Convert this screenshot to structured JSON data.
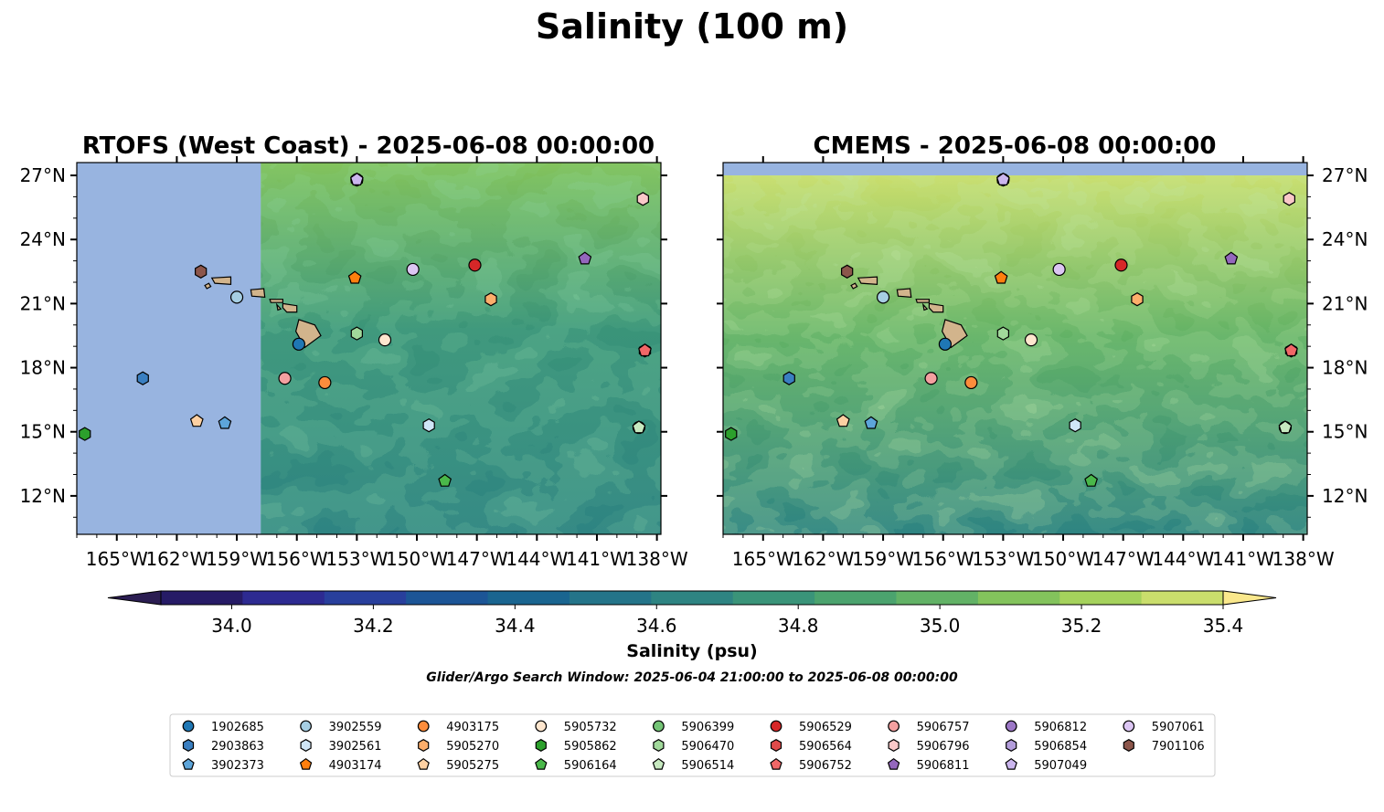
{
  "figure": {
    "suptitle": "Salinity (100 m)",
    "search_window": "Glider/Argo Search Window: 2025-06-04 21:00:00 to 2025-06-08 00:00:00"
  },
  "colors": {
    "land": "#d2b48c",
    "nodata": "#98b4e0",
    "frame": "#000000"
  },
  "colorbar": {
    "label": "Salinity (psu)",
    "min": 33.9,
    "max": 35.4,
    "step": 0.1,
    "extend": "both",
    "ticks": [
      {
        "value": 34.0,
        "label": "34.0"
      },
      {
        "value": 34.2,
        "label": "34.2"
      },
      {
        "value": 34.4,
        "label": "34.4"
      },
      {
        "value": 34.6,
        "label": "34.6"
      },
      {
        "value": 34.8,
        "label": "34.8"
      },
      {
        "value": 35.0,
        "label": "35.0"
      },
      {
        "value": 35.2,
        "label": "35.2"
      },
      {
        "value": 35.4,
        "label": "35.4"
      }
    ],
    "colors": [
      "#261b66",
      "#2d2a91",
      "#283f9c",
      "#1c5596",
      "#1a6590",
      "#247489",
      "#2e8482",
      "#3a9479",
      "#4ba36e",
      "#62b266",
      "#83c35c",
      "#a5d25c",
      "#cade6c"
    ],
    "under_color": "#2b1d52",
    "over_color": "#fae88c"
  },
  "chart_data": [
    {
      "type": "map",
      "title": "RTOFS (West Coast) - 2025-06-08 00:00:00",
      "xlim": [
        -167,
        -137.8
      ],
      "ylim": [
        10.2,
        27.6
      ],
      "xticks": [
        {
          "value": -165,
          "label": "165°W"
        },
        {
          "value": -162,
          "label": "162°W"
        },
        {
          "value": -159,
          "label": "159°W"
        },
        {
          "value": -156,
          "label": "156°W"
        },
        {
          "value": -153,
          "label": "153°W"
        },
        {
          "value": -150,
          "label": "150°W"
        },
        {
          "value": -147,
          "label": "147°W"
        },
        {
          "value": -144,
          "label": "144°W"
        },
        {
          "value": -141,
          "label": "141°W"
        },
        {
          "value": -138,
          "label": "138°W"
        }
      ],
      "yticks": [
        {
          "value": 27,
          "label": "27°N"
        },
        {
          "value": 24,
          "label": "24°N"
        },
        {
          "value": 21,
          "label": "21°N"
        },
        {
          "value": 18,
          "label": "18°N"
        },
        {
          "value": 15,
          "label": "15°N"
        },
        {
          "value": 12,
          "label": "12°N"
        }
      ],
      "ytick_side": "left",
      "data_extent": {
        "lon": [
          -157.8,
          -137.8
        ],
        "lat": [
          10.2,
          27.6
        ]
      },
      "salinity_field": {
        "mean": 34.6,
        "north_mean": 34.95,
        "south_mean": 34.5
      }
    },
    {
      "type": "map",
      "title": "CMEMS - 2025-06-08 00:00:00",
      "xlim": [
        -167,
        -137.8
      ],
      "ylim": [
        10.2,
        27.6
      ],
      "xticks": [
        {
          "value": -165,
          "label": "165°W"
        },
        {
          "value": -162,
          "label": "162°W"
        },
        {
          "value": -159,
          "label": "159°W"
        },
        {
          "value": -156,
          "label": "156°W"
        },
        {
          "value": -153,
          "label": "153°W"
        },
        {
          "value": -150,
          "label": "150°W"
        },
        {
          "value": -147,
          "label": "147°W"
        },
        {
          "value": -144,
          "label": "144°W"
        },
        {
          "value": -141,
          "label": "141°W"
        },
        {
          "value": -138,
          "label": "138°W"
        }
      ],
      "yticks": [
        {
          "value": 27,
          "label": "27°N"
        },
        {
          "value": 24,
          "label": "24°N"
        },
        {
          "value": 21,
          "label": "21°N"
        },
        {
          "value": 18,
          "label": "18°N"
        },
        {
          "value": 15,
          "label": "15°N"
        },
        {
          "value": 12,
          "label": "12°N"
        }
      ],
      "ytick_side": "right",
      "data_extent": {
        "lon": [
          -167,
          -137.8
        ],
        "lat": [
          10.2,
          27.0
        ]
      },
      "salinity_field": {
        "mean": 34.85,
        "north_mean": 35.2,
        "south_mean": 34.55
      }
    }
  ],
  "platforms": [
    {
      "id": "1902685",
      "marker": "circle",
      "color": "#1f77b4",
      "lon": -155.9,
      "lat": 19.1
    },
    {
      "id": "2903863",
      "marker": "hexagon",
      "color": "#3a7fc1",
      "lon": -163.7,
      "lat": 17.5
    },
    {
      "id": "3902373",
      "marker": "pentagon",
      "color": "#5da5da",
      "lon": -159.6,
      "lat": 15.4
    },
    {
      "id": "3902559",
      "marker": "circle",
      "color": "#a6cee3",
      "lon": -159.0,
      "lat": 21.3
    },
    {
      "id": "3902561",
      "marker": "hexagon",
      "color": "#cfe6f7",
      "lon": -149.4,
      "lat": 15.3
    },
    {
      "id": "4903174",
      "marker": "pentagon",
      "color": "#ff7f0e",
      "lon": -153.1,
      "lat": 22.2
    },
    {
      "id": "4903175",
      "marker": "circle",
      "color": "#fd8d3c",
      "lon": -154.6,
      "lat": 17.3
    },
    {
      "id": "5905270",
      "marker": "hexagon",
      "color": "#fdae6b",
      "lon": -146.3,
      "lat": 21.2
    },
    {
      "id": "5905275",
      "marker": "pentagon",
      "color": "#fdd0a2",
      "lon": -161.0,
      "lat": 15.5
    },
    {
      "id": "5905732",
      "marker": "circle",
      "color": "#fee6ce",
      "lon": -151.6,
      "lat": 19.3
    },
    {
      "id": "5905862",
      "marker": "hexagon",
      "color": "#2ca02c",
      "lon": -166.6,
      "lat": 14.9
    },
    {
      "id": "5906164",
      "marker": "pentagon",
      "color": "#4ab84a",
      "lon": -148.6,
      "lat": 12.7
    },
    {
      "id": "5906399",
      "marker": "circle",
      "color": "#74c476",
      "lon": -138.9,
      "lat": 15.2
    },
    {
      "id": "5906470",
      "marker": "hexagon",
      "color": "#a1d99b",
      "lon": -153.0,
      "lat": 19.6
    },
    {
      "id": "5906514",
      "marker": "pentagon",
      "color": "#c7e9c0",
      "lon": -138.9,
      "lat": 15.2
    },
    {
      "id": "5906529",
      "marker": "circle",
      "color": "#d62728",
      "lon": -147.1,
      "lat": 22.8
    },
    {
      "id": "5906564",
      "marker": "hexagon",
      "color": "#e04a4a",
      "lon": -138.6,
      "lat": 18.8
    },
    {
      "id": "5906752",
      "marker": "pentagon",
      "color": "#f06767",
      "lon": -138.6,
      "lat": 18.8
    },
    {
      "id": "5906757",
      "marker": "circle",
      "color": "#f4a0a0",
      "lon": -156.6,
      "lat": 17.5
    },
    {
      "id": "5906796",
      "marker": "hexagon",
      "color": "#f9c8c8",
      "lon": -138.7,
      "lat": 25.9
    },
    {
      "id": "5906811",
      "marker": "pentagon",
      "color": "#9467bd",
      "lon": -141.6,
      "lat": 23.1
    },
    {
      "id": "5906812",
      "marker": "circle",
      "color": "#9c77c6",
      "lon": -153.0,
      "lat": 26.8
    },
    {
      "id": "5906854",
      "marker": "hexagon",
      "color": "#b39ddb",
      "lon": -153.0,
      "lat": 26.8
    },
    {
      "id": "5907049",
      "marker": "pentagon",
      "color": "#cbb6ee",
      "lon": -153.0,
      "lat": 26.8
    },
    {
      "id": "5907061",
      "marker": "circle",
      "color": "#dcc6f3",
      "lon": -150.2,
      "lat": 22.6
    },
    {
      "id": "7901106",
      "marker": "hexagon",
      "color": "#8c564b",
      "lon": -160.8,
      "lat": 22.5
    }
  ]
}
